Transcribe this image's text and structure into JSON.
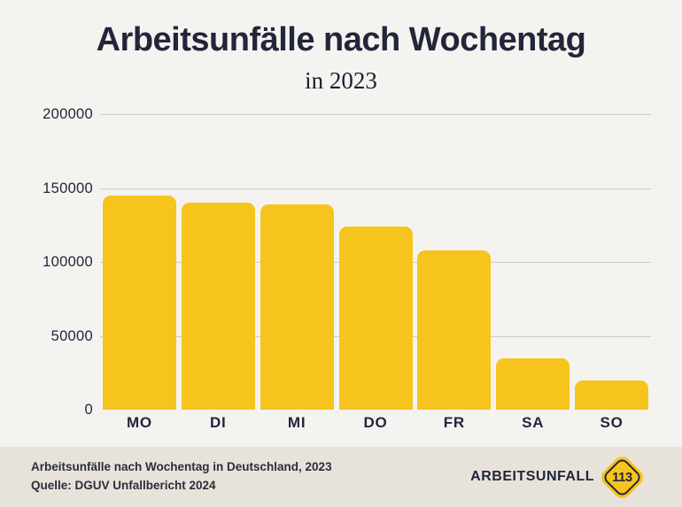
{
  "title": "Arbeitsunfälle nach Wochentag",
  "subtitle": "in 2023",
  "chart_data": {
    "type": "bar",
    "categories": [
      "MO",
      "DI",
      "MI",
      "DO",
      "FR",
      "SA",
      "SO"
    ],
    "values": [
      145000,
      140000,
      139000,
      124000,
      108000,
      35000,
      20000
    ],
    "title": "Arbeitsunfälle nach Wochentag in 2023",
    "xlabel": "",
    "ylabel": "",
    "ylim": [
      0,
      200000
    ],
    "yticks": [
      0,
      50000,
      100000,
      150000,
      200000
    ],
    "grid": true,
    "legend": "none",
    "bar_color": "#F6C41D"
  },
  "footer": {
    "line1": "Arbeitsunfälle nach Wochentag in Deutschland, 2023",
    "line2": "Quelle: DGUV Unfallbericht 2024",
    "brand": "ARBEITSUNFALL",
    "badge": "113"
  },
  "colors": {
    "background": "#F5F3F0",
    "footer_background": "#E7E3DB",
    "bar": "#F6C41D",
    "text": "#23263A",
    "gridline": "#CFCCC5"
  }
}
